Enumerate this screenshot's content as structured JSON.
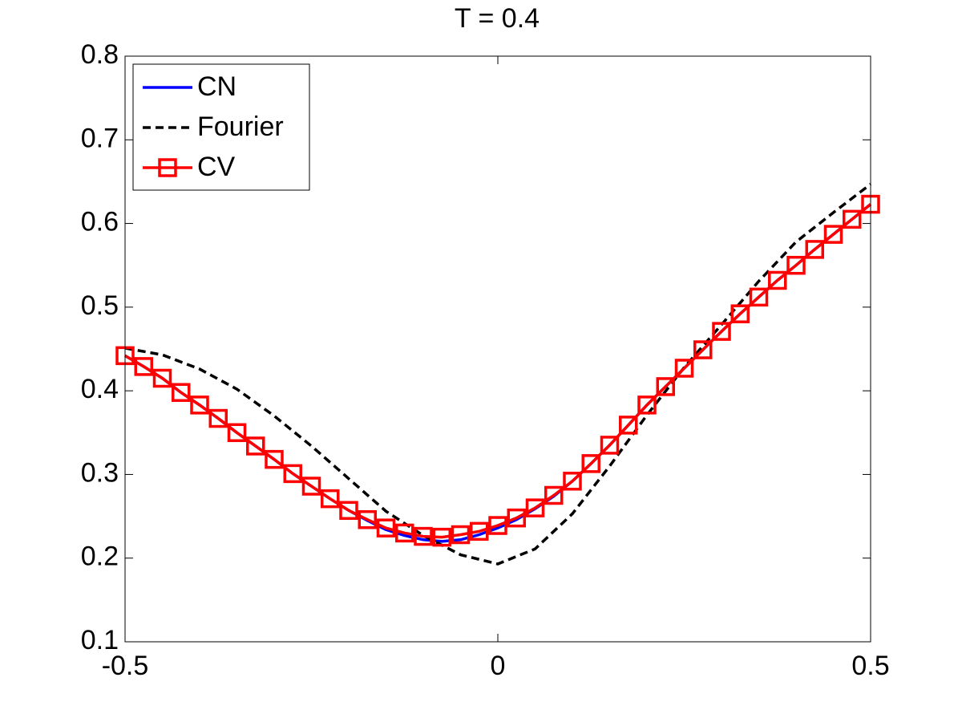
{
  "chart_data": {
    "type": "line",
    "title": "T = 0.4",
    "xlim": [
      -0.5,
      0.5
    ],
    "xticks": [
      -0.5,
      0,
      0.5
    ],
    "ylim": [
      0.1,
      0.8
    ],
    "yticks": [
      0.1,
      0.2,
      0.3,
      0.4,
      0.5,
      0.6,
      0.7,
      0.8
    ],
    "grid": false,
    "legend": "upper left",
    "series": [
      {
        "name": "CN",
        "color": "#0000ff",
        "style": "solid",
        "marker": "none",
        "x": [
          -0.5,
          -0.475,
          -0.45,
          -0.425,
          -0.4,
          -0.375,
          -0.35,
          -0.325,
          -0.3,
          -0.275,
          -0.25,
          -0.225,
          -0.2,
          -0.175,
          -0.15,
          -0.125,
          -0.1,
          -0.075,
          -0.05,
          -0.025,
          0,
          0.025,
          0.05,
          0.075,
          0.1,
          0.125,
          0.15,
          0.175,
          0.2,
          0.225,
          0.25,
          0.275,
          0.3,
          0.325,
          0.35,
          0.375,
          0.4,
          0.425,
          0.45,
          0.475,
          0.5
        ],
        "values": [
          0.442,
          0.429,
          0.415,
          0.398,
          0.383,
          0.367,
          0.35,
          0.334,
          0.318,
          0.301,
          0.286,
          0.271,
          0.257,
          0.245,
          0.234,
          0.227,
          0.222,
          0.22,
          0.222,
          0.228,
          0.236,
          0.246,
          0.259,
          0.274,
          0.292,
          0.313,
          0.335,
          0.359,
          0.383,
          0.405,
          0.427,
          0.449,
          0.471,
          0.492,
          0.512,
          0.532,
          0.55,
          0.569,
          0.587,
          0.605,
          0.623
        ]
      },
      {
        "name": "Fourier",
        "color": "#000000",
        "style": "dashed",
        "marker": "none",
        "x": [
          -0.5,
          -0.45,
          -0.4,
          -0.35,
          -0.3,
          -0.25,
          -0.2,
          -0.15,
          -0.1,
          -0.05,
          0,
          0.05,
          0.1,
          0.15,
          0.2,
          0.25,
          0.3,
          0.35,
          0.4,
          0.45,
          0.5
        ],
        "values": [
          0.451,
          0.443,
          0.426,
          0.402,
          0.37,
          0.334,
          0.295,
          0.256,
          0.227,
          0.204,
          0.193,
          0.211,
          0.253,
          0.31,
          0.371,
          0.428,
          0.479,
          0.531,
          0.578,
          0.613,
          0.647
        ]
      },
      {
        "name": "CV",
        "color": "#ff0000",
        "style": "solid",
        "marker": "square",
        "x": [
          -0.5,
          -0.475,
          -0.45,
          -0.425,
          -0.4,
          -0.375,
          -0.35,
          -0.325,
          -0.3,
          -0.275,
          -0.25,
          -0.225,
          -0.2,
          -0.175,
          -0.15,
          -0.125,
          -0.1,
          -0.075,
          -0.05,
          -0.025,
          0,
          0.025,
          0.05,
          0.075,
          0.1,
          0.125,
          0.15,
          0.175,
          0.2,
          0.225,
          0.25,
          0.275,
          0.3,
          0.325,
          0.35,
          0.375,
          0.4,
          0.425,
          0.45,
          0.475,
          0.5
        ],
        "values": [
          0.442,
          0.429,
          0.415,
          0.398,
          0.383,
          0.367,
          0.35,
          0.334,
          0.318,
          0.301,
          0.286,
          0.271,
          0.257,
          0.246,
          0.236,
          0.23,
          0.226,
          0.225,
          0.228,
          0.232,
          0.239,
          0.248,
          0.26,
          0.275,
          0.292,
          0.313,
          0.335,
          0.359,
          0.383,
          0.405,
          0.427,
          0.449,
          0.471,
          0.492,
          0.512,
          0.532,
          0.55,
          0.569,
          0.587,
          0.605,
          0.623
        ]
      }
    ]
  }
}
